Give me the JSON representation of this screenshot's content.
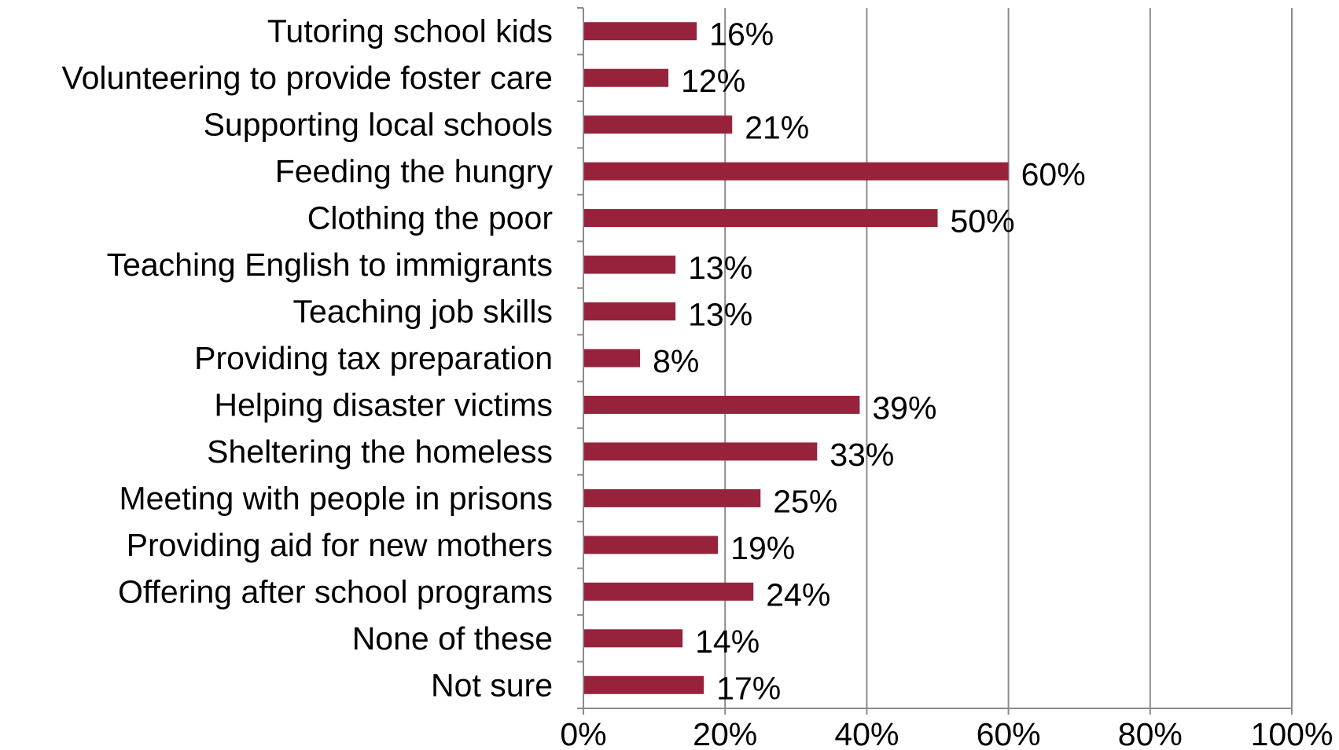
{
  "chart_data": {
    "type": "bar",
    "orientation": "horizontal",
    "categories": [
      "Tutoring school kids",
      "Volunteering to provide foster care",
      "Supporting local schools",
      "Feeding the hungry",
      "Clothing the poor",
      "Teaching English to immigrants",
      "Teaching job skills",
      "Providing tax preparation",
      "Helping disaster victims",
      "Sheltering the homeless",
      "Meeting with people in prisons",
      "Providing aid for new mothers",
      "Offering after school programs",
      "None of these",
      "Not sure"
    ],
    "values": [
      16,
      12,
      21,
      60,
      50,
      13,
      13,
      8,
      39,
      33,
      25,
      19,
      24,
      14,
      17
    ],
    "value_labels": [
      "16%",
      "12%",
      "21%",
      "60%",
      "50%",
      "13%",
      "13%",
      "8%",
      "39%",
      "33%",
      "25%",
      "19%",
      "24%",
      "14%",
      "17%"
    ],
    "xlim": [
      0,
      100
    ],
    "x_ticks": [
      0,
      20,
      40,
      60,
      80,
      100
    ],
    "x_tick_labels": [
      "0%",
      "20%",
      "40%",
      "60%",
      "80%",
      "100%"
    ],
    "title": "",
    "xlabel": "",
    "ylabel": "",
    "grid": "vertical",
    "legend": "none",
    "colors": {
      "bar": "#96233b",
      "grid": "#8c8c8c",
      "axis": "#8c8c8c",
      "text": "#000000"
    }
  }
}
